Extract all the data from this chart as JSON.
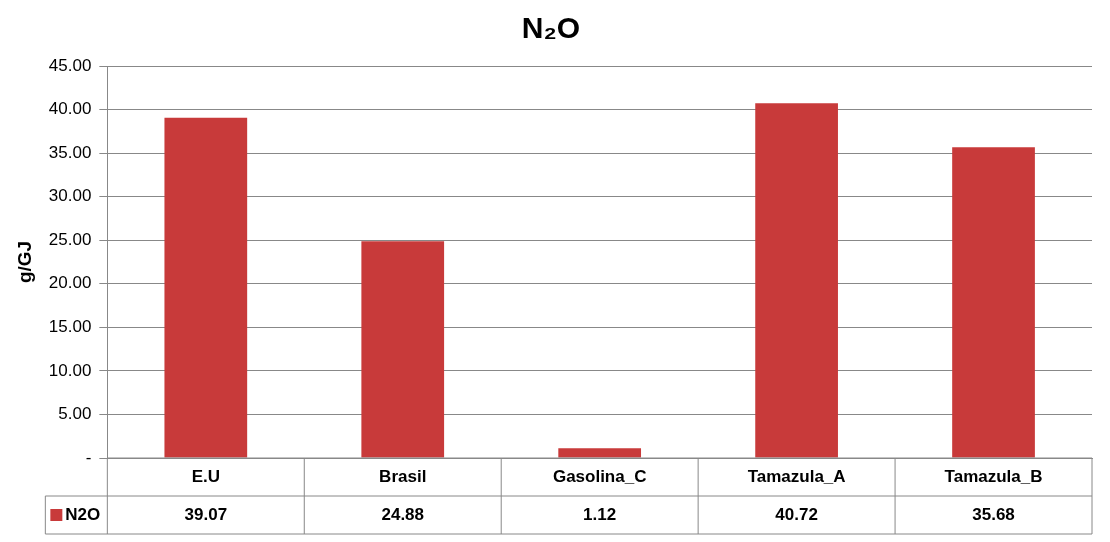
{
  "chart_data": {
    "type": "bar",
    "title": "N₂O",
    "ylabel": "g/GJ",
    "categories": [
      "E.U",
      "Brasil",
      "Gasolina_C",
      "Tamazula_A",
      "Tamazula_B"
    ],
    "series": [
      {
        "name": "N2O",
        "color": "#c83a3a",
        "values": [
          39.07,
          24.88,
          1.12,
          40.72,
          35.68
        ]
      }
    ],
    "ylim": [
      0,
      45
    ],
    "yticks": [
      {
        "value": 0,
        "label": "-"
      },
      {
        "value": 5,
        "label": "5.00"
      },
      {
        "value": 10,
        "label": "10.00"
      },
      {
        "value": 15,
        "label": "15.00"
      },
      {
        "value": 20,
        "label": "20.00"
      },
      {
        "value": 25,
        "label": "25.00"
      },
      {
        "value": 30,
        "label": "30.00"
      },
      {
        "value": 35,
        "label": "35.00"
      },
      {
        "value": 40,
        "label": "40.00"
      },
      {
        "value": 45,
        "label": "45.00"
      }
    ],
    "grid": "y",
    "data_labels": true
  }
}
